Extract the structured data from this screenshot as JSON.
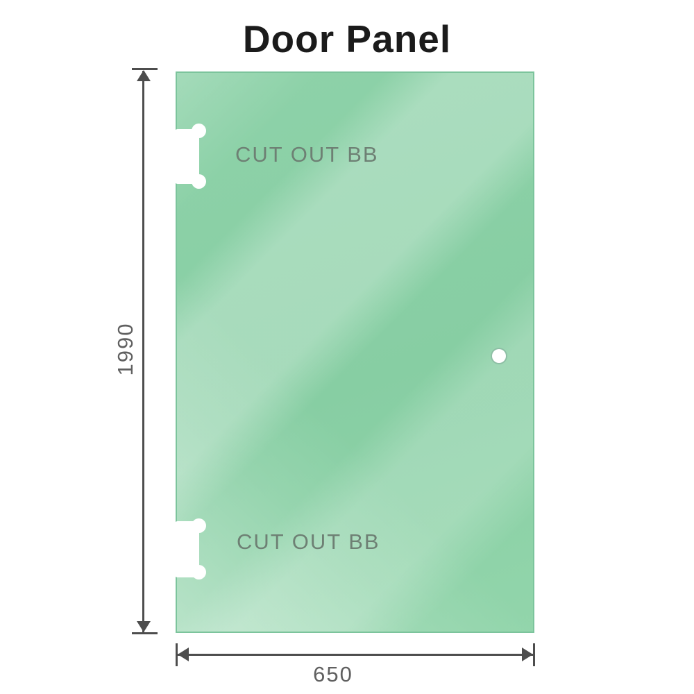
{
  "title": "Door Panel",
  "panel": {
    "cutouts": [
      {
        "label": "CUT OUT BB"
      },
      {
        "label": "CUT OUT BB"
      }
    ],
    "hole_icon": "circle-hole"
  },
  "dimensions": {
    "height": "1990",
    "width": "650"
  },
  "colors": {
    "glass_base": "#8acfa5",
    "glass_highlight": "#c2ead2",
    "glass_edge": "#7cc49c",
    "dimension_line": "#4d4d4d",
    "dimension_text": "#606060",
    "cutout_text": "#6e8074",
    "title_text": "#1b1b1b"
  }
}
